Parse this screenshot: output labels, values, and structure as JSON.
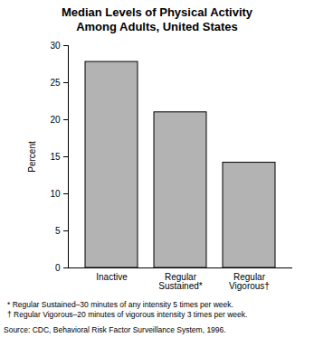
{
  "chart_data": {
    "type": "bar",
    "title": "Median Levels of Physical Activity Among Adults, United States",
    "categories": [
      "Inactive",
      "Regular Sustained*",
      "Regular Vigorous†"
    ],
    "values": [
      27.8,
      21,
      14.2
    ],
    "color": "#b3b3b3",
    "y_label": "Percent",
    "ylim": [
      0,
      30
    ],
    "yticks": [
      0,
      5,
      10,
      15,
      20,
      25,
      30
    ],
    "grid": false,
    "notes": [
      "* Regular Sustained–30 minutes of any intensity 5 times per week.",
      "† Regular Vigorous–20 minutes of vigorous intensity 3 times per week."
    ],
    "source": "Source: CDC, Behavioral Risk Factor Surveillance System, 1996."
  }
}
